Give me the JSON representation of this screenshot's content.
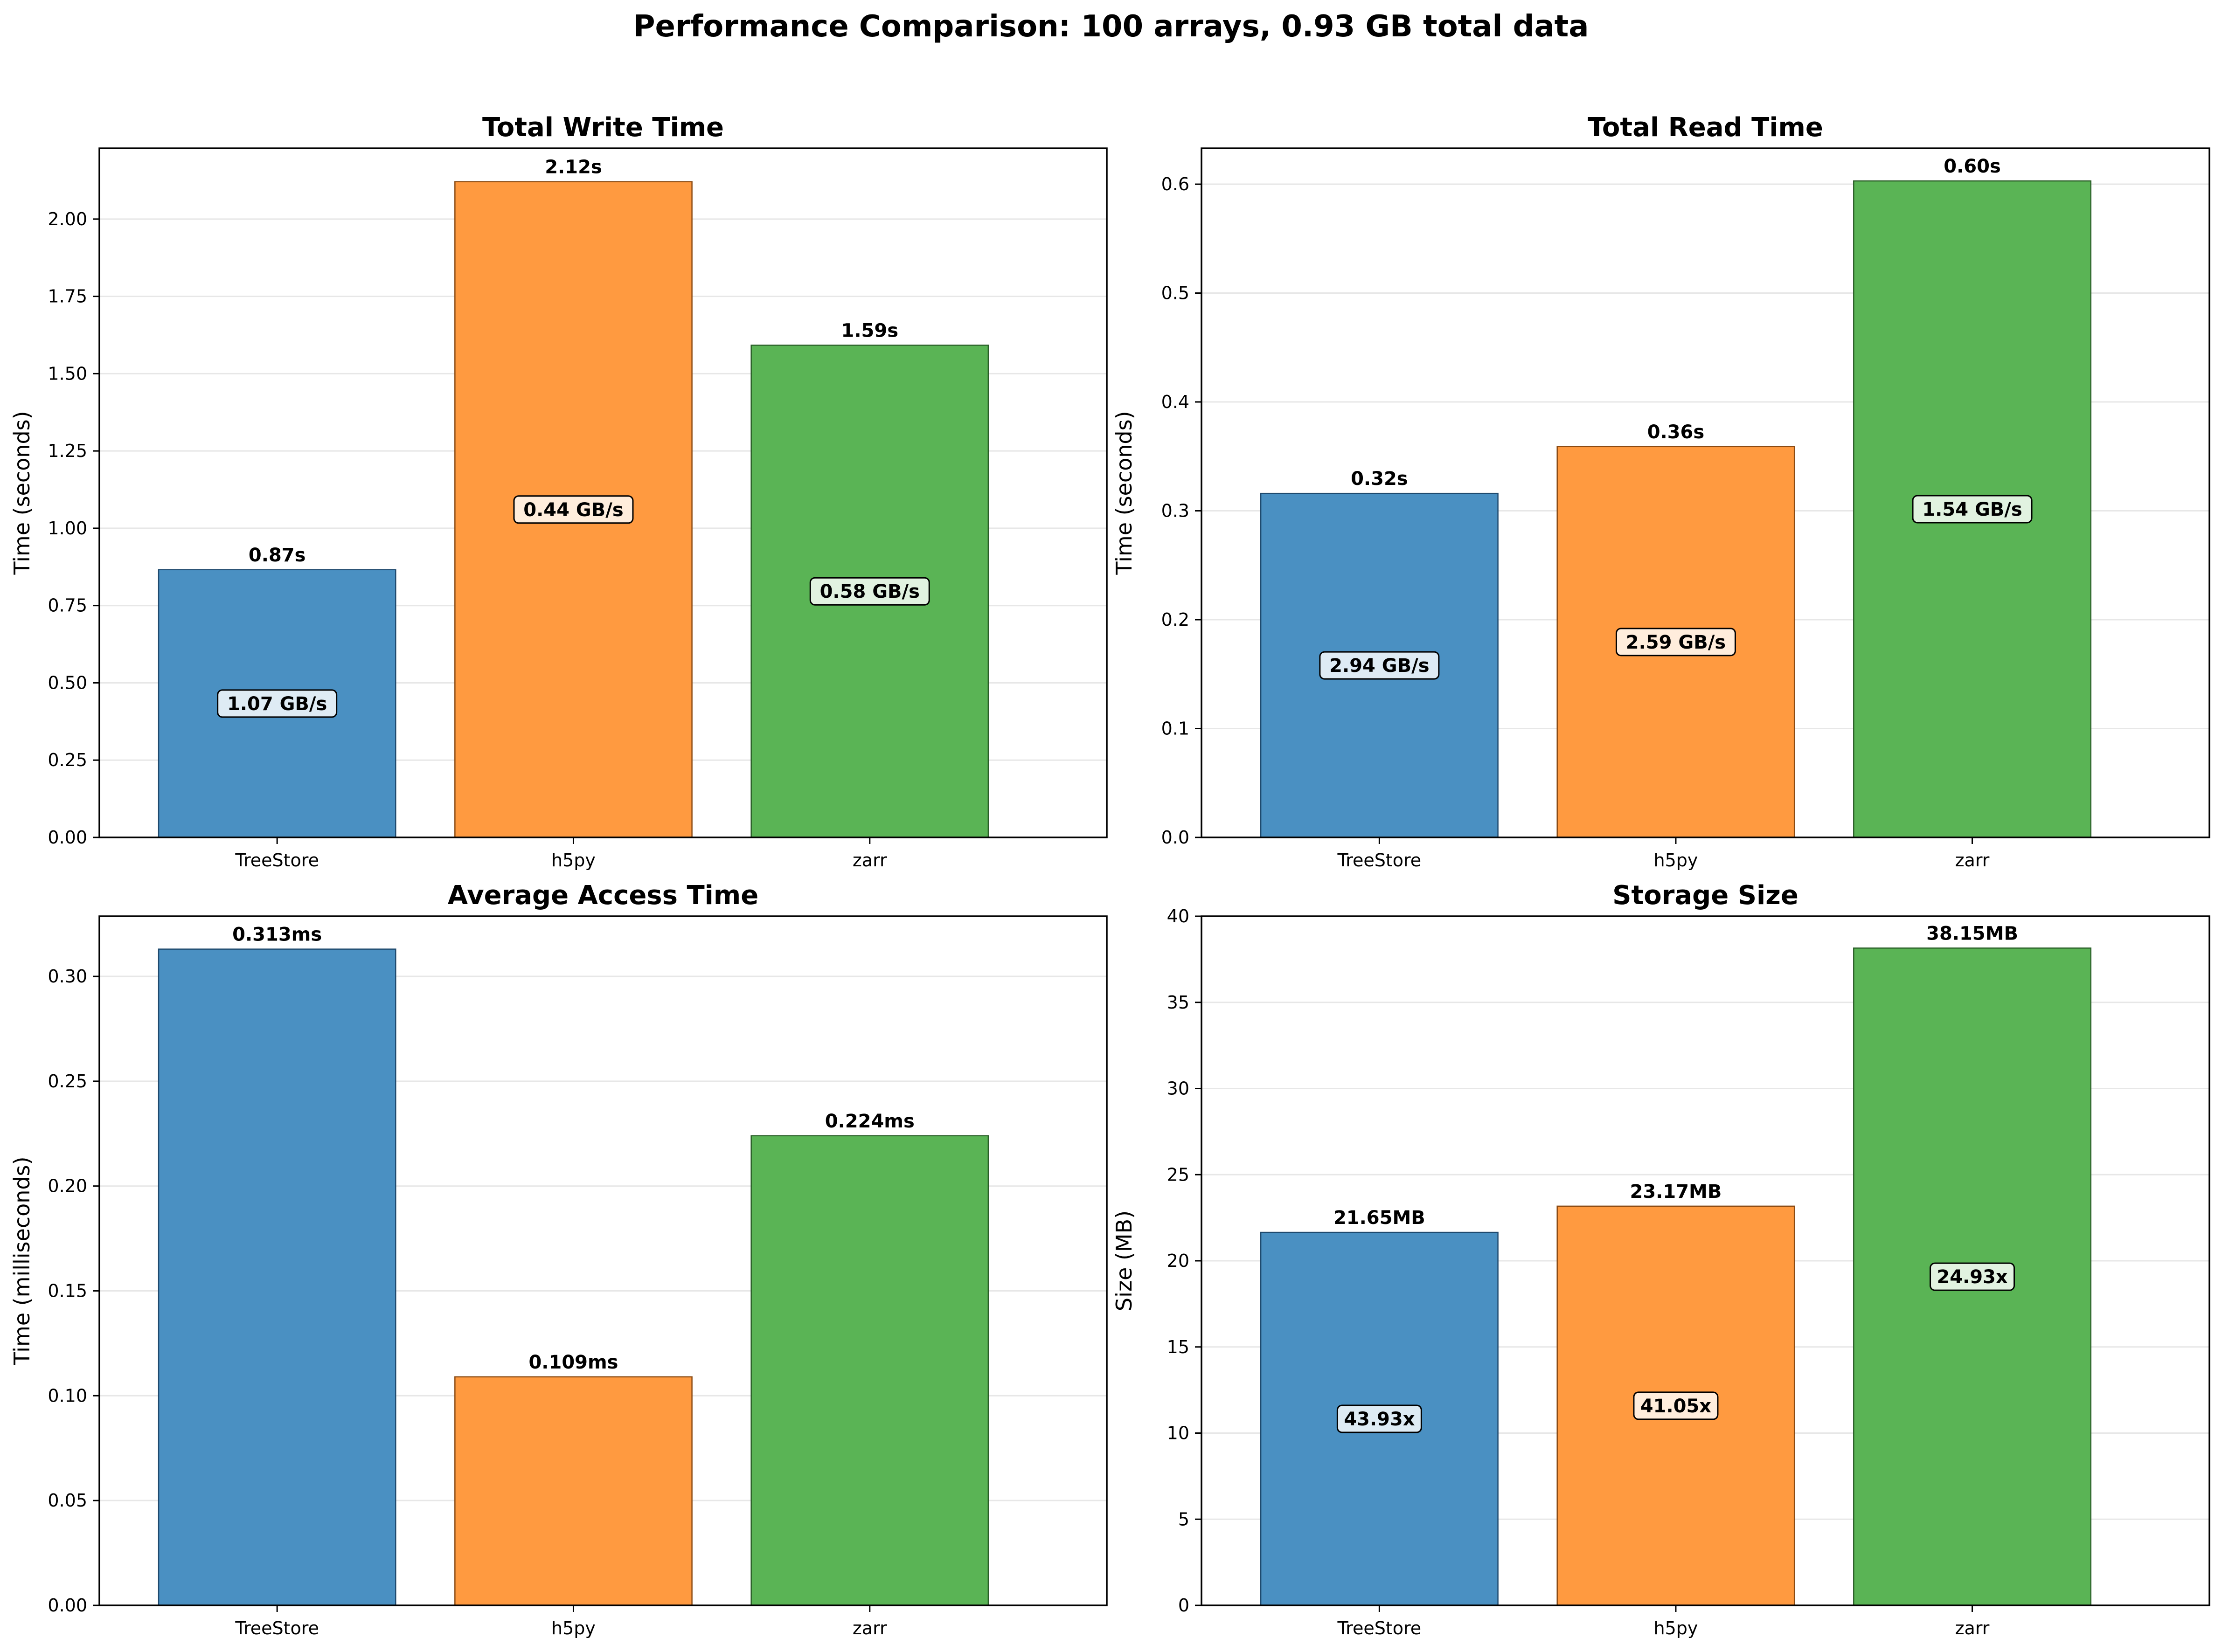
{
  "figure": {
    "title": "Performance Comparison: 100 arrays, 0.93 GB total data"
  },
  "colors": {
    "TreeStore": "#4a90c2",
    "h5py": "#ff9a40",
    "zarr": "#5ab455",
    "edge_TreeStore": "#1f4a6e",
    "edge_h5py": "#8a4a12",
    "edge_zarr": "#2a5e28"
  },
  "chart_data": [
    {
      "type": "bar",
      "title": "Total Write Time",
      "xlabel": "",
      "ylabel": "Time (seconds)",
      "categories": [
        "TreeStore",
        "h5py",
        "zarr"
      ],
      "values": [
        0.866,
        2.121,
        1.592
      ],
      "value_labels": [
        "0.87s",
        "2.12s",
        "1.59s"
      ],
      "inner_labels": [
        "1.07 GB/s",
        "0.44 GB/s",
        "0.58 GB/s"
      ],
      "ylim": [
        0,
        2.229
      ],
      "yticks": [
        0,
        0.25,
        0.5,
        0.75,
        1.0,
        1.25,
        1.5,
        1.75,
        2.0
      ],
      "ytick_labels": [
        "0.00",
        "0.25",
        "0.50",
        "0.75",
        "1.00",
        "1.25",
        "1.50",
        "1.75",
        "2.00"
      ],
      "grid": "y"
    },
    {
      "type": "bar",
      "title": "Total Read Time",
      "xlabel": "",
      "ylabel": "Time (seconds)",
      "categories": [
        "TreeStore",
        "h5py",
        "zarr"
      ],
      "values": [
        0.316,
        0.359,
        0.603
      ],
      "value_labels": [
        "0.32s",
        "0.36s",
        "0.60s"
      ],
      "inner_labels": [
        "2.94 GB/s",
        "2.59 GB/s",
        "1.54 GB/s"
      ],
      "ylim": [
        0,
        0.633
      ],
      "yticks": [
        0,
        0.1,
        0.2,
        0.3,
        0.4,
        0.5,
        0.6
      ],
      "ytick_labels": [
        "0.0",
        "0.1",
        "0.2",
        "0.3",
        "0.4",
        "0.5",
        "0.6"
      ],
      "grid": "y"
    },
    {
      "type": "bar",
      "title": "Average Access Time",
      "xlabel": "",
      "ylabel": "Time (milliseconds)",
      "categories": [
        "TreeStore",
        "h5py",
        "zarr"
      ],
      "values": [
        0.313,
        0.109,
        0.224
      ],
      "value_labels": [
        "0.313ms",
        "0.109ms",
        "0.224ms"
      ],
      "inner_labels": [],
      "ylim": [
        0,
        0.3287
      ],
      "yticks": [
        0,
        0.05,
        0.1,
        0.15,
        0.2,
        0.25,
        0.3
      ],
      "ytick_labels": [
        "0.00",
        "0.05",
        "0.10",
        "0.15",
        "0.20",
        "0.25",
        "0.30"
      ],
      "grid": "y"
    },
    {
      "type": "bar",
      "title": "Storage Size",
      "xlabel": "",
      "ylabel": "Size (MB)",
      "categories": [
        "TreeStore",
        "h5py",
        "zarr"
      ],
      "values": [
        21.65,
        23.17,
        38.15
      ],
      "value_labels": [
        "21.65MB",
        "23.17MB",
        "38.15MB"
      ],
      "inner_labels": [
        "43.93x",
        "41.05x",
        "24.93x"
      ],
      "ylim": [
        0,
        40
      ],
      "yticks": [
        0,
        5,
        10,
        15,
        20,
        25,
        30,
        35,
        40
      ],
      "ytick_labels": [
        "0",
        "5",
        "10",
        "15",
        "20",
        "25",
        "30",
        "35",
        "40"
      ],
      "grid": "y"
    }
  ]
}
